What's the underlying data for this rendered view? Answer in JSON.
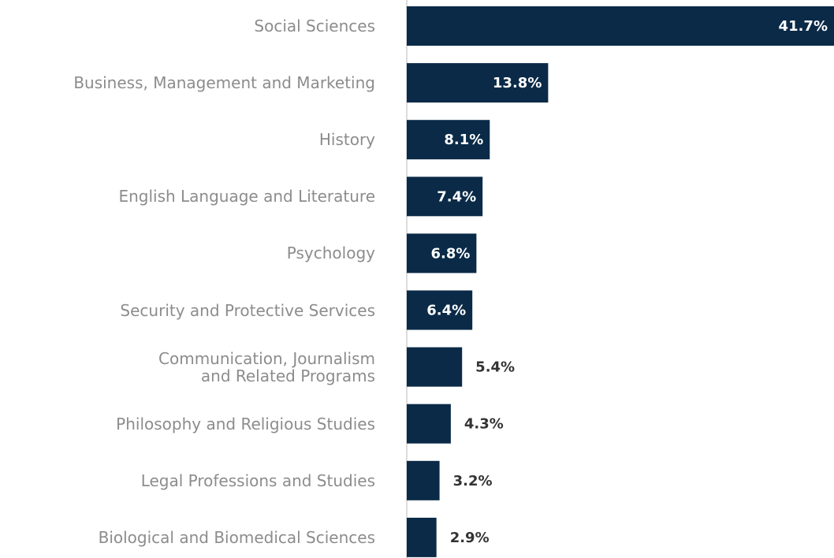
{
  "chart_data": {
    "type": "barh",
    "categories": [
      "Social Sciences",
      "Business, Management and Marketing",
      "History",
      "English Language and Literature",
      "Psychology",
      "Security and Protective Services",
      "Communication, Journalism\nand Related Programs",
      "Philosophy and Religious Studies",
      "Legal Professions and Studies",
      "Biological and Biomedical Sciences"
    ],
    "values": [
      41.7,
      13.8,
      8.1,
      7.4,
      6.8,
      6.4,
      5.4,
      4.3,
      3.2,
      2.9
    ],
    "value_labels": [
      "41.7%",
      "13.8%",
      "8.1%",
      "7.4%",
      "6.8%",
      "6.4%",
      "5.4%",
      "4.3%",
      "3.2%",
      "2.9%"
    ],
    "color": "#0a2a47"
  }
}
